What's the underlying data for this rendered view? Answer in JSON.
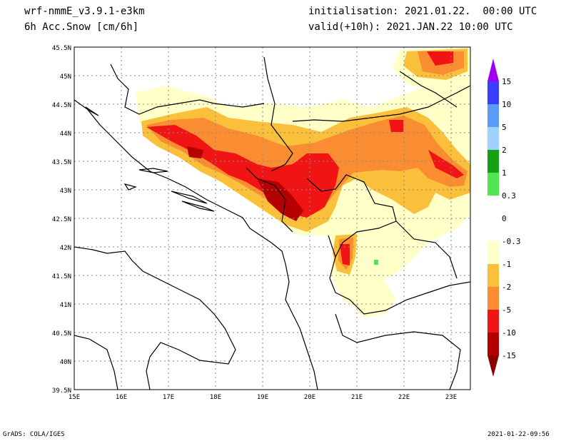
{
  "header": {
    "model": "wrf-nmmE_v3.9.1-e3km",
    "field": "6h Acc.Snow [cm/6h]",
    "init": "initialisation: 2021.01.22.  00:00 UTC",
    "valid": "valid(+10h): 2021.JAN.22 10:00 UTC"
  },
  "footer": {
    "left": "GrADS: COLA/IGES",
    "right": "2021-01-22-09:56"
  },
  "map": {
    "lat_labels": [
      "45.5N",
      "45N",
      "44.5N",
      "44N",
      "43.5N",
      "43N",
      "42.5N",
      "42N",
      "41.5N",
      "41N",
      "40.5N",
      "40N",
      "39.5N"
    ],
    "lon_labels": [
      "15E",
      "16E",
      "17E",
      "18E",
      "19E",
      "20E",
      "21E",
      "22E",
      "23E"
    ]
  },
  "legend": {
    "colors": [
      "#a000f0",
      "#3c3cff",
      "#5a9bf5",
      "#a0d2ff",
      "#15a015",
      "#50e650",
      "#ffffff",
      "#ffffc8",
      "#fac03c",
      "#fa8c32",
      "#f01414",
      "#b40000"
    ],
    "labels": [
      "15",
      "10",
      "5",
      "2",
      "1",
      "0.3",
      "0",
      "-0.3",
      "-1",
      "-2",
      "-5",
      "-10",
      "-15"
    ],
    "bottom_color": "#8c0000"
  }
}
